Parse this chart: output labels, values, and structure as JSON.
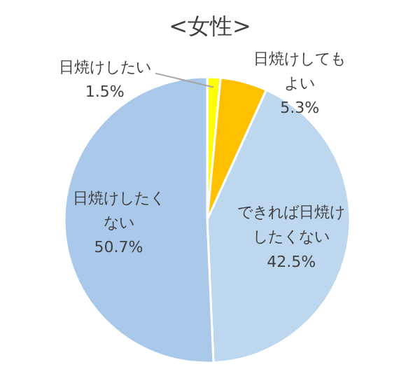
{
  "chart_data": {
    "type": "pie",
    "title": "<女性>",
    "categories": [
      "日焼けしたい",
      "日焼けしてもよい",
      "できれば日焼けしたくない",
      "日焼けしたくない"
    ],
    "values": [
      1.5,
      5.3,
      42.5,
      50.7
    ],
    "colors": [
      "#ffff00",
      "#ffc000",
      "#bdd7ee",
      "#a9c8ea"
    ],
    "value_labels": [
      "1.5%",
      "5.3%",
      "42.5%",
      "50.7%"
    ]
  }
}
